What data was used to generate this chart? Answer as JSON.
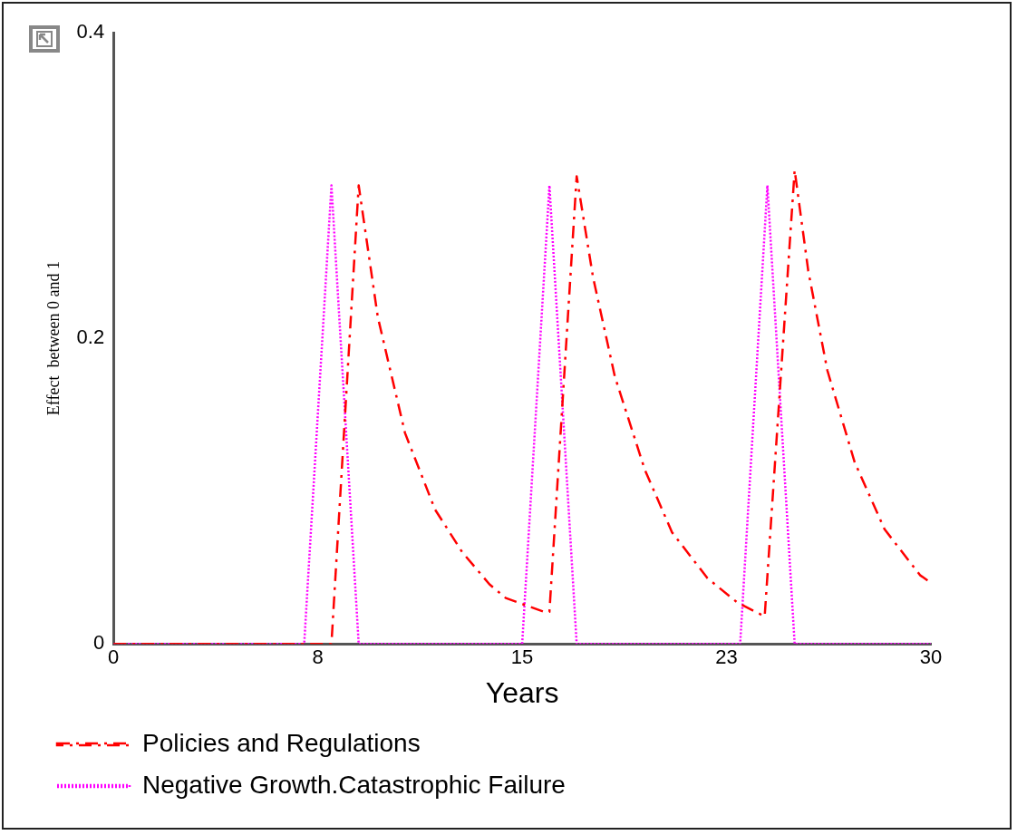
{
  "chart_data": {
    "type": "line",
    "xlabel": "Years",
    "ylabel": "Effect  between 0 and 1",
    "xlim": [
      0,
      30
    ],
    "xticks": [
      0,
      {
        "value": 7.5,
        "label": "8"
      },
      15,
      {
        "value": 22.5,
        "label": "23"
      },
      30
    ],
    "ylim": [
      0,
      0.4
    ],
    "yticks": [
      0,
      0.2,
      0.4
    ],
    "grid": false,
    "legend": "bottom",
    "marker": "none",
    "series": [
      {
        "name": "Policies and Regulations",
        "color": "#ff0000",
        "line_style": "dashed",
        "x": [
          0,
          8,
          9,
          9.7,
          10.7,
          11.8,
          12.8,
          13.8,
          14.4,
          15.8,
          16,
          17,
          17.6,
          18.4,
          19.5,
          20.5,
          21.8,
          22.9,
          23.9,
          25,
          25.5,
          26.2,
          27.2,
          28.3,
          29.6,
          30
        ],
        "values": [
          0,
          0,
          0.3,
          0.214,
          0.138,
          0.088,
          0.06,
          0.039,
          0.03,
          0.021,
          0.021,
          0.306,
          0.24,
          0.175,
          0.114,
          0.073,
          0.043,
          0.027,
          0.018,
          0.31,
          0.244,
          0.179,
          0.119,
          0.075,
          0.045,
          0.04
        ]
      },
      {
        "name": "Negative Growth.Catastrophic Failure",
        "color": "#ff00ff",
        "line_style": "dotted",
        "x": [
          0,
          7,
          8,
          9,
          15,
          16,
          17,
          23,
          24,
          25,
          30
        ],
        "values": [
          0,
          0,
          0.3,
          0,
          0,
          0.3,
          0,
          0,
          0.3,
          0,
          0
        ]
      }
    ]
  }
}
